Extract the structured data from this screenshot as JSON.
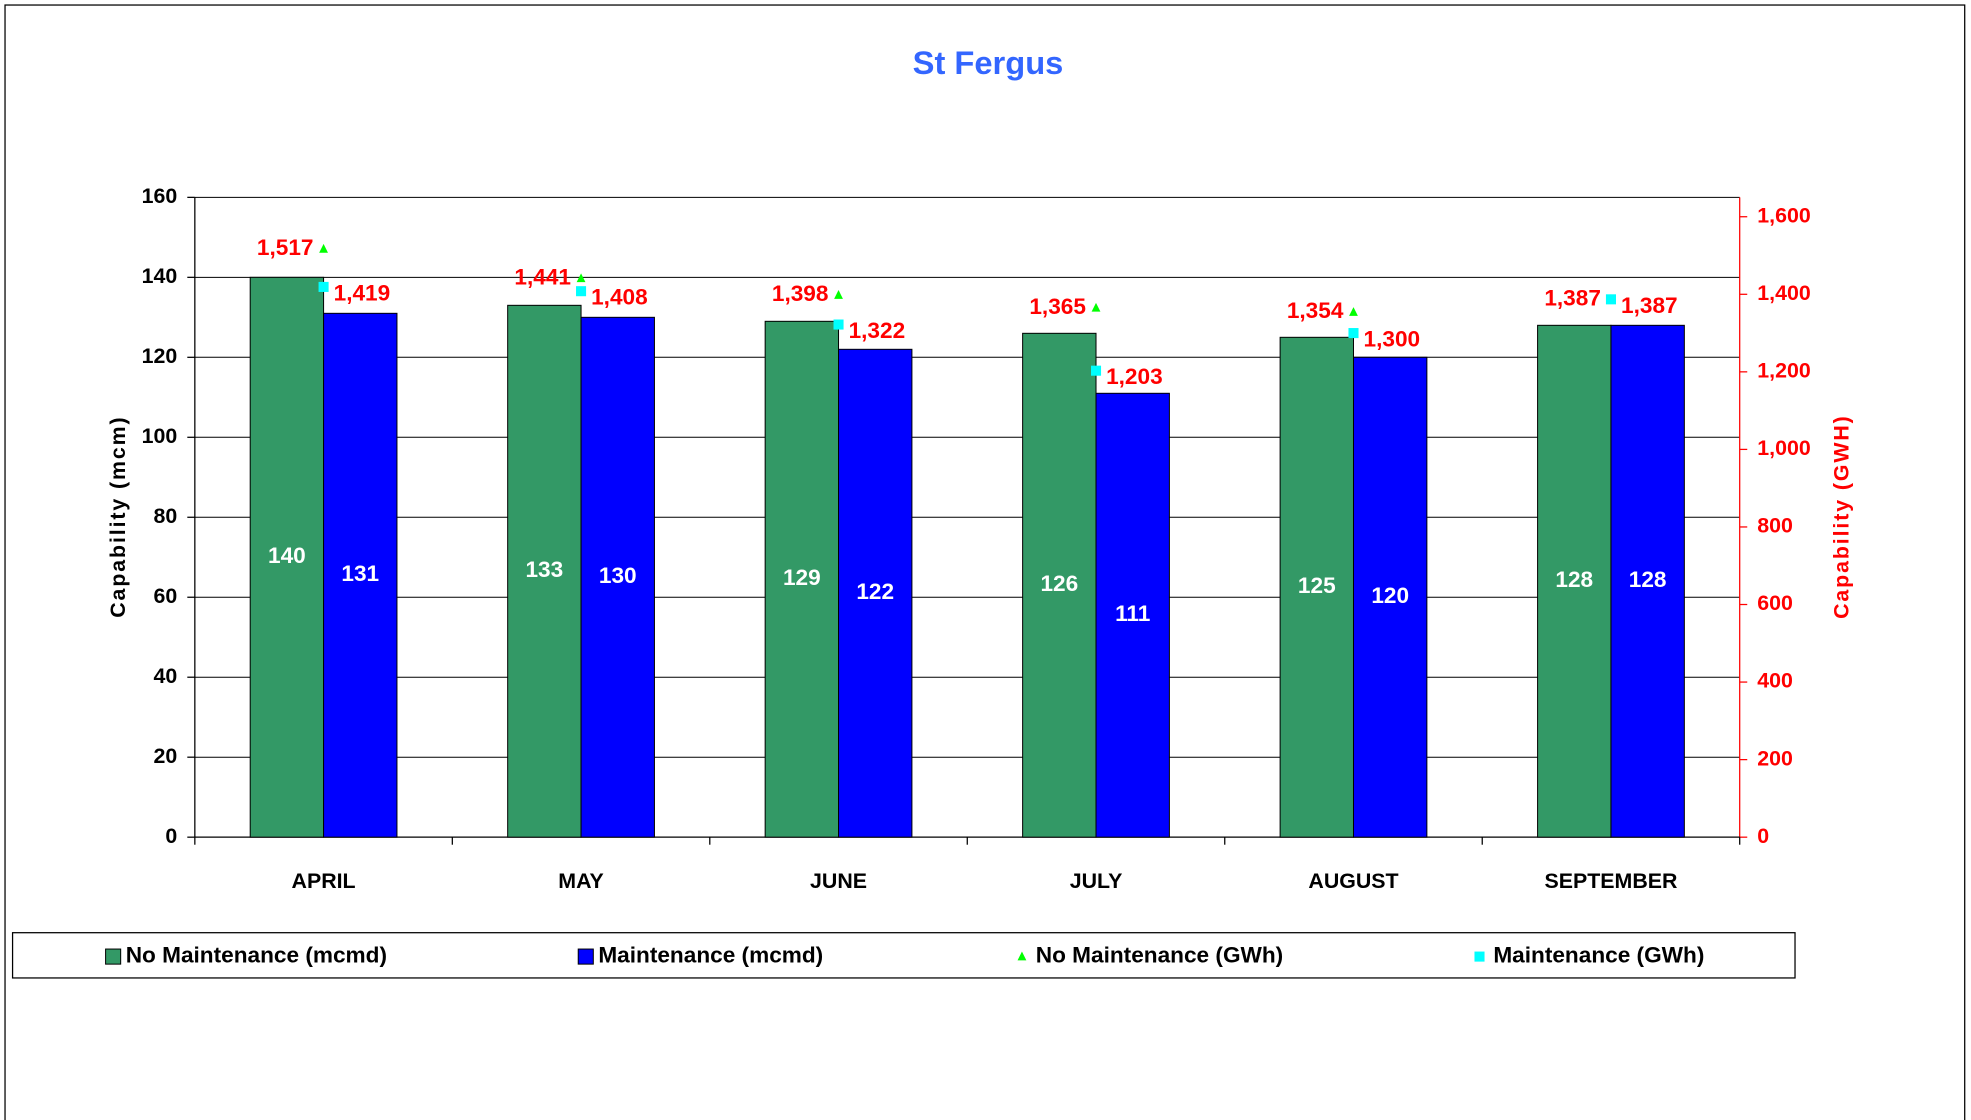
{
  "chart_data": {
    "type": "bar",
    "title": "St Fergus",
    "ylabel": "Capability (mcm)",
    "y2label": "Capability (GWH)",
    "categories": [
      "APRIL",
      "MAY",
      "JUNE",
      "JULY",
      "AUGUST",
      "SEPTEMBER"
    ],
    "ylim": [
      0,
      160
    ],
    "yticks": [
      0,
      20,
      40,
      60,
      80,
      100,
      120,
      140,
      160
    ],
    "y2lim": [
      0,
      1650
    ],
    "y2ticks": [
      0,
      200,
      400,
      600,
      800,
      {
        "value": 1000,
        "label": "1,000"
      },
      {
        "value": 1200,
        "label": "1,200"
      },
      {
        "value": 1400,
        "label": "1,400"
      },
      {
        "value": 1600,
        "label": "1,600"
      }
    ],
    "grid": true,
    "legend": "bottom",
    "series": [
      {
        "name": "No Maintenance (mcmd)",
        "type": "bar",
        "color": "#339966",
        "values": [
          140,
          133,
          129,
          126,
          125,
          128
        ]
      },
      {
        "name": "Maintenance (mcmd)",
        "type": "bar",
        "color": "#0000ff",
        "values": [
          131,
          130,
          122,
          111,
          120,
          128
        ]
      },
      {
        "name": "No Maintenance (GWh)",
        "type": "scatter",
        "marker": "triangle",
        "axis": "y2",
        "color": "#00ff00",
        "values": [
          1517,
          1441,
          1398,
          1365,
          1354,
          1387
        ],
        "value_labels": [
          "1,517",
          "1,441",
          "1,398",
          "1,365",
          "1,354",
          "1,387"
        ]
      },
      {
        "name": "Maintenance (GWh)",
        "type": "scatter",
        "marker": "square",
        "axis": "y2",
        "color": "#00ffff",
        "values": [
          1419,
          1408,
          1322,
          1203,
          1300,
          1387
        ],
        "value_labels": [
          "1,419",
          "1,408",
          "1,322",
          "1,203",
          "1,300",
          "1,387"
        ]
      }
    ]
  }
}
